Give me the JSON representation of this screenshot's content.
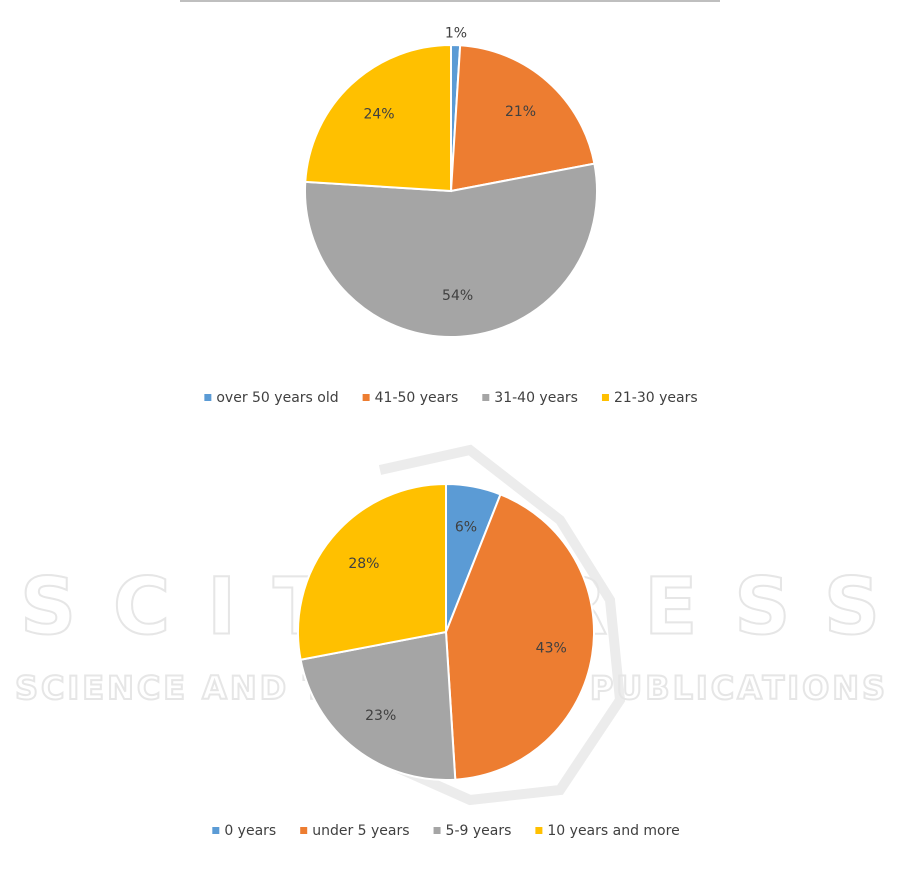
{
  "chart_data": [
    {
      "type": "pie",
      "categories": [
        "over 50 years old",
        "41-50 years",
        "31-40 years",
        "21-30 years"
      ],
      "values": [
        1,
        21,
        54,
        24
      ],
      "value_labels": [
        "1%",
        "21%",
        "54%",
        "24%"
      ],
      "colors": [
        "#5b9bd5",
        "#ed7d31",
        "#a5a5a5",
        "#ffc000"
      ],
      "legend": "bottom"
    },
    {
      "type": "pie",
      "categories": [
        "0 years",
        "under 5 years",
        "5-9 years",
        "10 years and more"
      ],
      "values": [
        6,
        43,
        23,
        28
      ],
      "value_labels": [
        "6%",
        "43%",
        "23%",
        "28%"
      ],
      "colors": [
        "#5b9bd5",
        "#ed7d31",
        "#a5a5a5",
        "#ffc000"
      ],
      "legend": "bottom"
    }
  ],
  "watermark": {
    "title": "SCITEPRESS",
    "subtitle": "SCIENCE AND TECHNOLOGY PUBLICATIONS"
  }
}
